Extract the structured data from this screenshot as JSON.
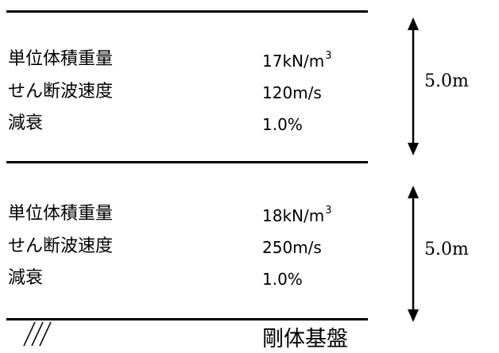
{
  "layers": [
    {
      "properties": [
        {
          "label": "単位体積重量",
          "value": "17kN/m",
          "sup": "3"
        },
        {
          "label": "せん断波速度",
          "value": "120m/s",
          "sup": ""
        },
        {
          "label": "減衰",
          "value": "1.0%",
          "sup": ""
        }
      ],
      "thickness": "5.0m"
    },
    {
      "properties": [
        {
          "label": "単位体積重量",
          "value": "18kN/m",
          "sup": "3"
        },
        {
          "label": "せん断波速度",
          "value": "250m/s",
          "sup": ""
        },
        {
          "label": "減衰",
          "value": "1.0%",
          "sup": ""
        }
      ],
      "thickness": "5.0m"
    }
  ],
  "base": {
    "label": "剛体基盤"
  }
}
